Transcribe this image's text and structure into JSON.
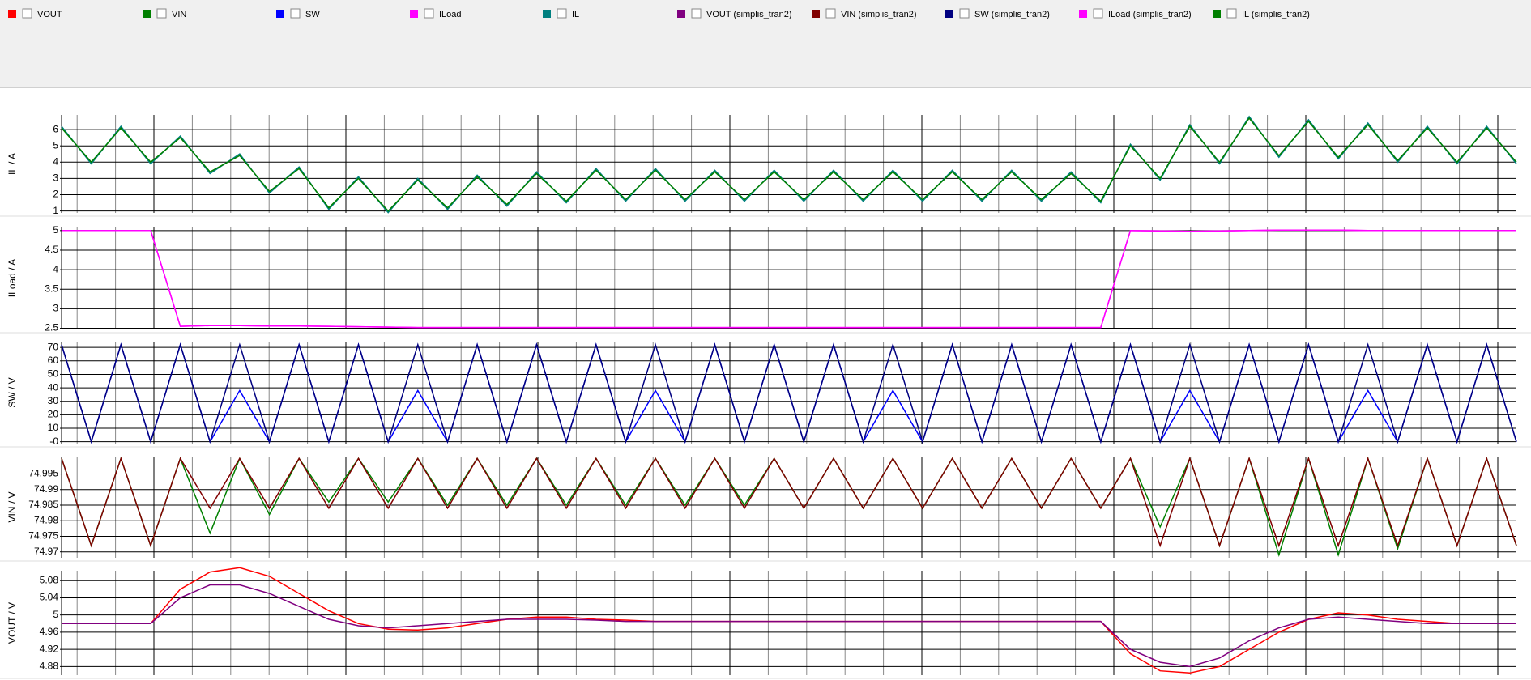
{
  "chart_data": [
    {
      "type": "line",
      "ylabel": "IL / A",
      "ylim": [
        0.88,
        6.9
      ],
      "yticks": [
        1,
        2,
        3,
        4,
        5,
        6
      ],
      "grid": true,
      "series": [
        {
          "name": "IL",
          "color": "#008080",
          "values": [
            6.2,
            3.9,
            6.2,
            3.9,
            5.6,
            3.3,
            4.5,
            2.1,
            3.7,
            1.1,
            3.1,
            0.9,
            3.0,
            1.1,
            3.2,
            1.3,
            3.4,
            1.5,
            3.6,
            1.6,
            3.6,
            1.6,
            3.5,
            1.6,
            3.5,
            1.6,
            3.5,
            1.6,
            3.5,
            1.6,
            3.5,
            1.6,
            3.5,
            1.6,
            3.4,
            1.5,
            5.1,
            2.9,
            6.3,
            3.9,
            6.8,
            4.3,
            6.6,
            4.2,
            6.4,
            4.0,
            6.2,
            3.9,
            6.2,
            3.9
          ]
        },
        {
          "name": "IL (simplis_tran2)",
          "color": "#008000",
          "values": [
            6.1,
            4.0,
            6.1,
            4.0,
            5.5,
            3.4,
            4.4,
            2.2,
            3.6,
            1.2,
            3.0,
            1.0,
            2.9,
            1.2,
            3.1,
            1.4,
            3.3,
            1.6,
            3.5,
            1.7,
            3.5,
            1.7,
            3.4,
            1.7,
            3.4,
            1.7,
            3.4,
            1.7,
            3.4,
            1.7,
            3.4,
            1.7,
            3.4,
            1.7,
            3.3,
            1.6,
            5.0,
            3.0,
            6.2,
            4.0,
            6.7,
            4.4,
            6.5,
            4.3,
            6.3,
            4.1,
            6.1,
            4.0,
            6.1,
            4.0
          ]
        }
      ]
    },
    {
      "type": "line",
      "ylabel": "ILoad / A",
      "ylim": [
        2.47,
        5.1
      ],
      "yticks": [
        2.5,
        3,
        3.5,
        4,
        4.5,
        5
      ],
      "grid": true,
      "series": [
        {
          "name": "ILoad",
          "color": "#ff00ff",
          "values": [
            5,
            5,
            5,
            5,
            2.55,
            2.57,
            2.57,
            2.56,
            2.56,
            2.55,
            2.54,
            2.53,
            2.52,
            2.52,
            2.52,
            2.52,
            2.52,
            2.52,
            2.52,
            2.52,
            2.52,
            2.52,
            2.52,
            2.52,
            2.52,
            2.52,
            2.52,
            2.52,
            2.52,
            2.52,
            2.52,
            2.52,
            2.52,
            2.52,
            2.52,
            2.52,
            5.0,
            4.99,
            4.98,
            4.99,
            5.0,
            5.01,
            5.01,
            5.01,
            5.0,
            5.0,
            5.0,
            5.0,
            5.0,
            5.0
          ]
        },
        {
          "name": "ILoad (simplis_tran2)",
          "color": "#ff00ff",
          "values": [
            5,
            5,
            5,
            5,
            2.55,
            2.57,
            2.57,
            2.56,
            2.56,
            2.55,
            2.54,
            2.53,
            2.52,
            2.52,
            2.52,
            2.52,
            2.52,
            2.52,
            2.52,
            2.52,
            2.52,
            2.52,
            2.52,
            2.52,
            2.52,
            2.52,
            2.52,
            2.52,
            2.52,
            2.52,
            2.52,
            2.52,
            2.52,
            2.52,
            2.52,
            2.52,
            5.0,
            4.99,
            4.98,
            4.99,
            5.0,
            5.01,
            5.01,
            5.01,
            5.0,
            5.0,
            5.0,
            5.0,
            5.0,
            5.0
          ]
        }
      ]
    },
    {
      "type": "line",
      "ylabel": "SW / V",
      "ylim": [
        -1.4,
        74.3
      ],
      "yticks": [
        {
          "value": 0,
          "label": "-0"
        },
        10,
        20,
        30,
        40,
        50,
        60,
        70
      ],
      "grid": true,
      "series": [
        {
          "name": "SW",
          "color": "#0000ff",
          "values": [
            72,
            0,
            72,
            0,
            72,
            0,
            38,
            0,
            72,
            0,
            72,
            0,
            38,
            0,
            72,
            0,
            72,
            0,
            72,
            0,
            38,
            0,
            72,
            0,
            72,
            0,
            72,
            0,
            38,
            0,
            72,
            0,
            72,
            0,
            72,
            0,
            72,
            0,
            38,
            0,
            72,
            0,
            72,
            0,
            38,
            0,
            72,
            0,
            72,
            0
          ]
        },
        {
          "name": "SW (simplis_tran2)",
          "color": "#000080",
          "values": [
            72,
            0,
            72,
            0,
            72,
            0,
            72,
            0,
            72,
            0,
            72,
            0,
            72,
            0,
            72,
            0,
            72,
            0,
            72,
            0,
            72,
            0,
            72,
            0,
            72,
            0,
            72,
            0,
            72,
            0,
            72,
            0,
            72,
            0,
            72,
            0,
            72,
            0,
            72,
            0,
            72,
            0,
            72,
            0,
            72,
            0,
            72,
            0,
            72,
            0
          ]
        }
      ]
    },
    {
      "type": "line",
      "ylabel": "VIN / V",
      "ylim": [
        74.9681,
        75.0006
      ],
      "yticks": [
        74.97,
        74.975,
        74.98,
        74.985,
        74.99,
        74.995
      ],
      "grid": true,
      "series": [
        {
          "name": "VIN",
          "color": "#008000",
          "values": [
            75.0,
            74.972,
            75.0,
            74.972,
            75.0,
            74.976,
            75.0,
            74.982,
            75.0,
            74.986,
            75.0,
            74.986,
            75.0,
            74.985,
            75.0,
            74.985,
            75.0,
            74.985,
            75.0,
            74.985,
            75.0,
            74.985,
            75.0,
            74.985,
            75.0,
            74.984,
            75.0,
            74.984,
            75.0,
            74.984,
            75.0,
            74.984,
            75.0,
            74.984,
            75.0,
            74.984,
            75.0,
            74.978,
            75.0,
            74.972,
            75.0,
            74.969,
            75.0,
            74.969,
            75.0,
            74.971,
            75.0,
            74.972,
            75.0,
            74.972
          ]
        },
        {
          "name": "VIN (simplis_tran2)",
          "color": "#800000",
          "values": [
            75.0,
            74.972,
            75.0,
            74.972,
            75.0,
            74.984,
            75.0,
            74.984,
            75.0,
            74.984,
            75.0,
            74.984,
            75.0,
            74.984,
            75.0,
            74.984,
            75.0,
            74.984,
            75.0,
            74.984,
            75.0,
            74.984,
            75.0,
            74.984,
            75.0,
            74.984,
            75.0,
            74.984,
            75.0,
            74.984,
            75.0,
            74.984,
            75.0,
            74.984,
            75.0,
            74.984,
            75.0,
            74.972,
            75.0,
            74.972,
            75.0,
            74.972,
            75.0,
            74.972,
            75.0,
            74.972,
            75.0,
            74.972,
            75.0,
            74.972
          ]
        }
      ]
    },
    {
      "type": "line",
      "ylabel": "VOUT / V",
      "ylim": [
        4.86,
        5.103
      ],
      "yticks": [
        4.88,
        4.92,
        4.96,
        5,
        5.04,
        5.08
      ],
      "grid": true,
      "series": [
        {
          "name": "VOUT",
          "color": "#ff0000",
          "values": [
            4.98,
            4.98,
            4.98,
            4.98,
            5.06,
            5.1,
            5.11,
            5.09,
            5.05,
            5.01,
            4.98,
            4.967,
            4.965,
            4.97,
            4.98,
            4.99,
            4.995,
            4.995,
            4.99,
            4.988,
            4.985,
            4.985,
            4.985,
            4.985,
            4.985,
            4.985,
            4.985,
            4.985,
            4.985,
            4.985,
            4.985,
            4.985,
            4.985,
            4.985,
            4.985,
            4.985,
            4.91,
            4.87,
            4.865,
            4.88,
            4.92,
            4.96,
            4.99,
            5.005,
            5.0,
            4.99,
            4.985,
            4.98,
            4.98,
            4.98
          ]
        },
        {
          "name": "VOUT (simplis_tran2)",
          "color": "#800080",
          "values": [
            4.98,
            4.98,
            4.98,
            4.98,
            5.04,
            5.07,
            5.07,
            5.05,
            5.02,
            4.99,
            4.975,
            4.97,
            4.975,
            4.98,
            4.985,
            4.99,
            4.99,
            4.99,
            4.988,
            4.985,
            4.985,
            4.985,
            4.985,
            4.985,
            4.985,
            4.985,
            4.985,
            4.985,
            4.985,
            4.985,
            4.985,
            4.985,
            4.985,
            4.985,
            4.985,
            4.985,
            4.92,
            4.89,
            4.88,
            4.9,
            4.94,
            4.97,
            4.99,
            4.995,
            4.99,
            4.985,
            4.98,
            4.98,
            4.98,
            4.98
          ]
        }
      ]
    }
  ]
}
